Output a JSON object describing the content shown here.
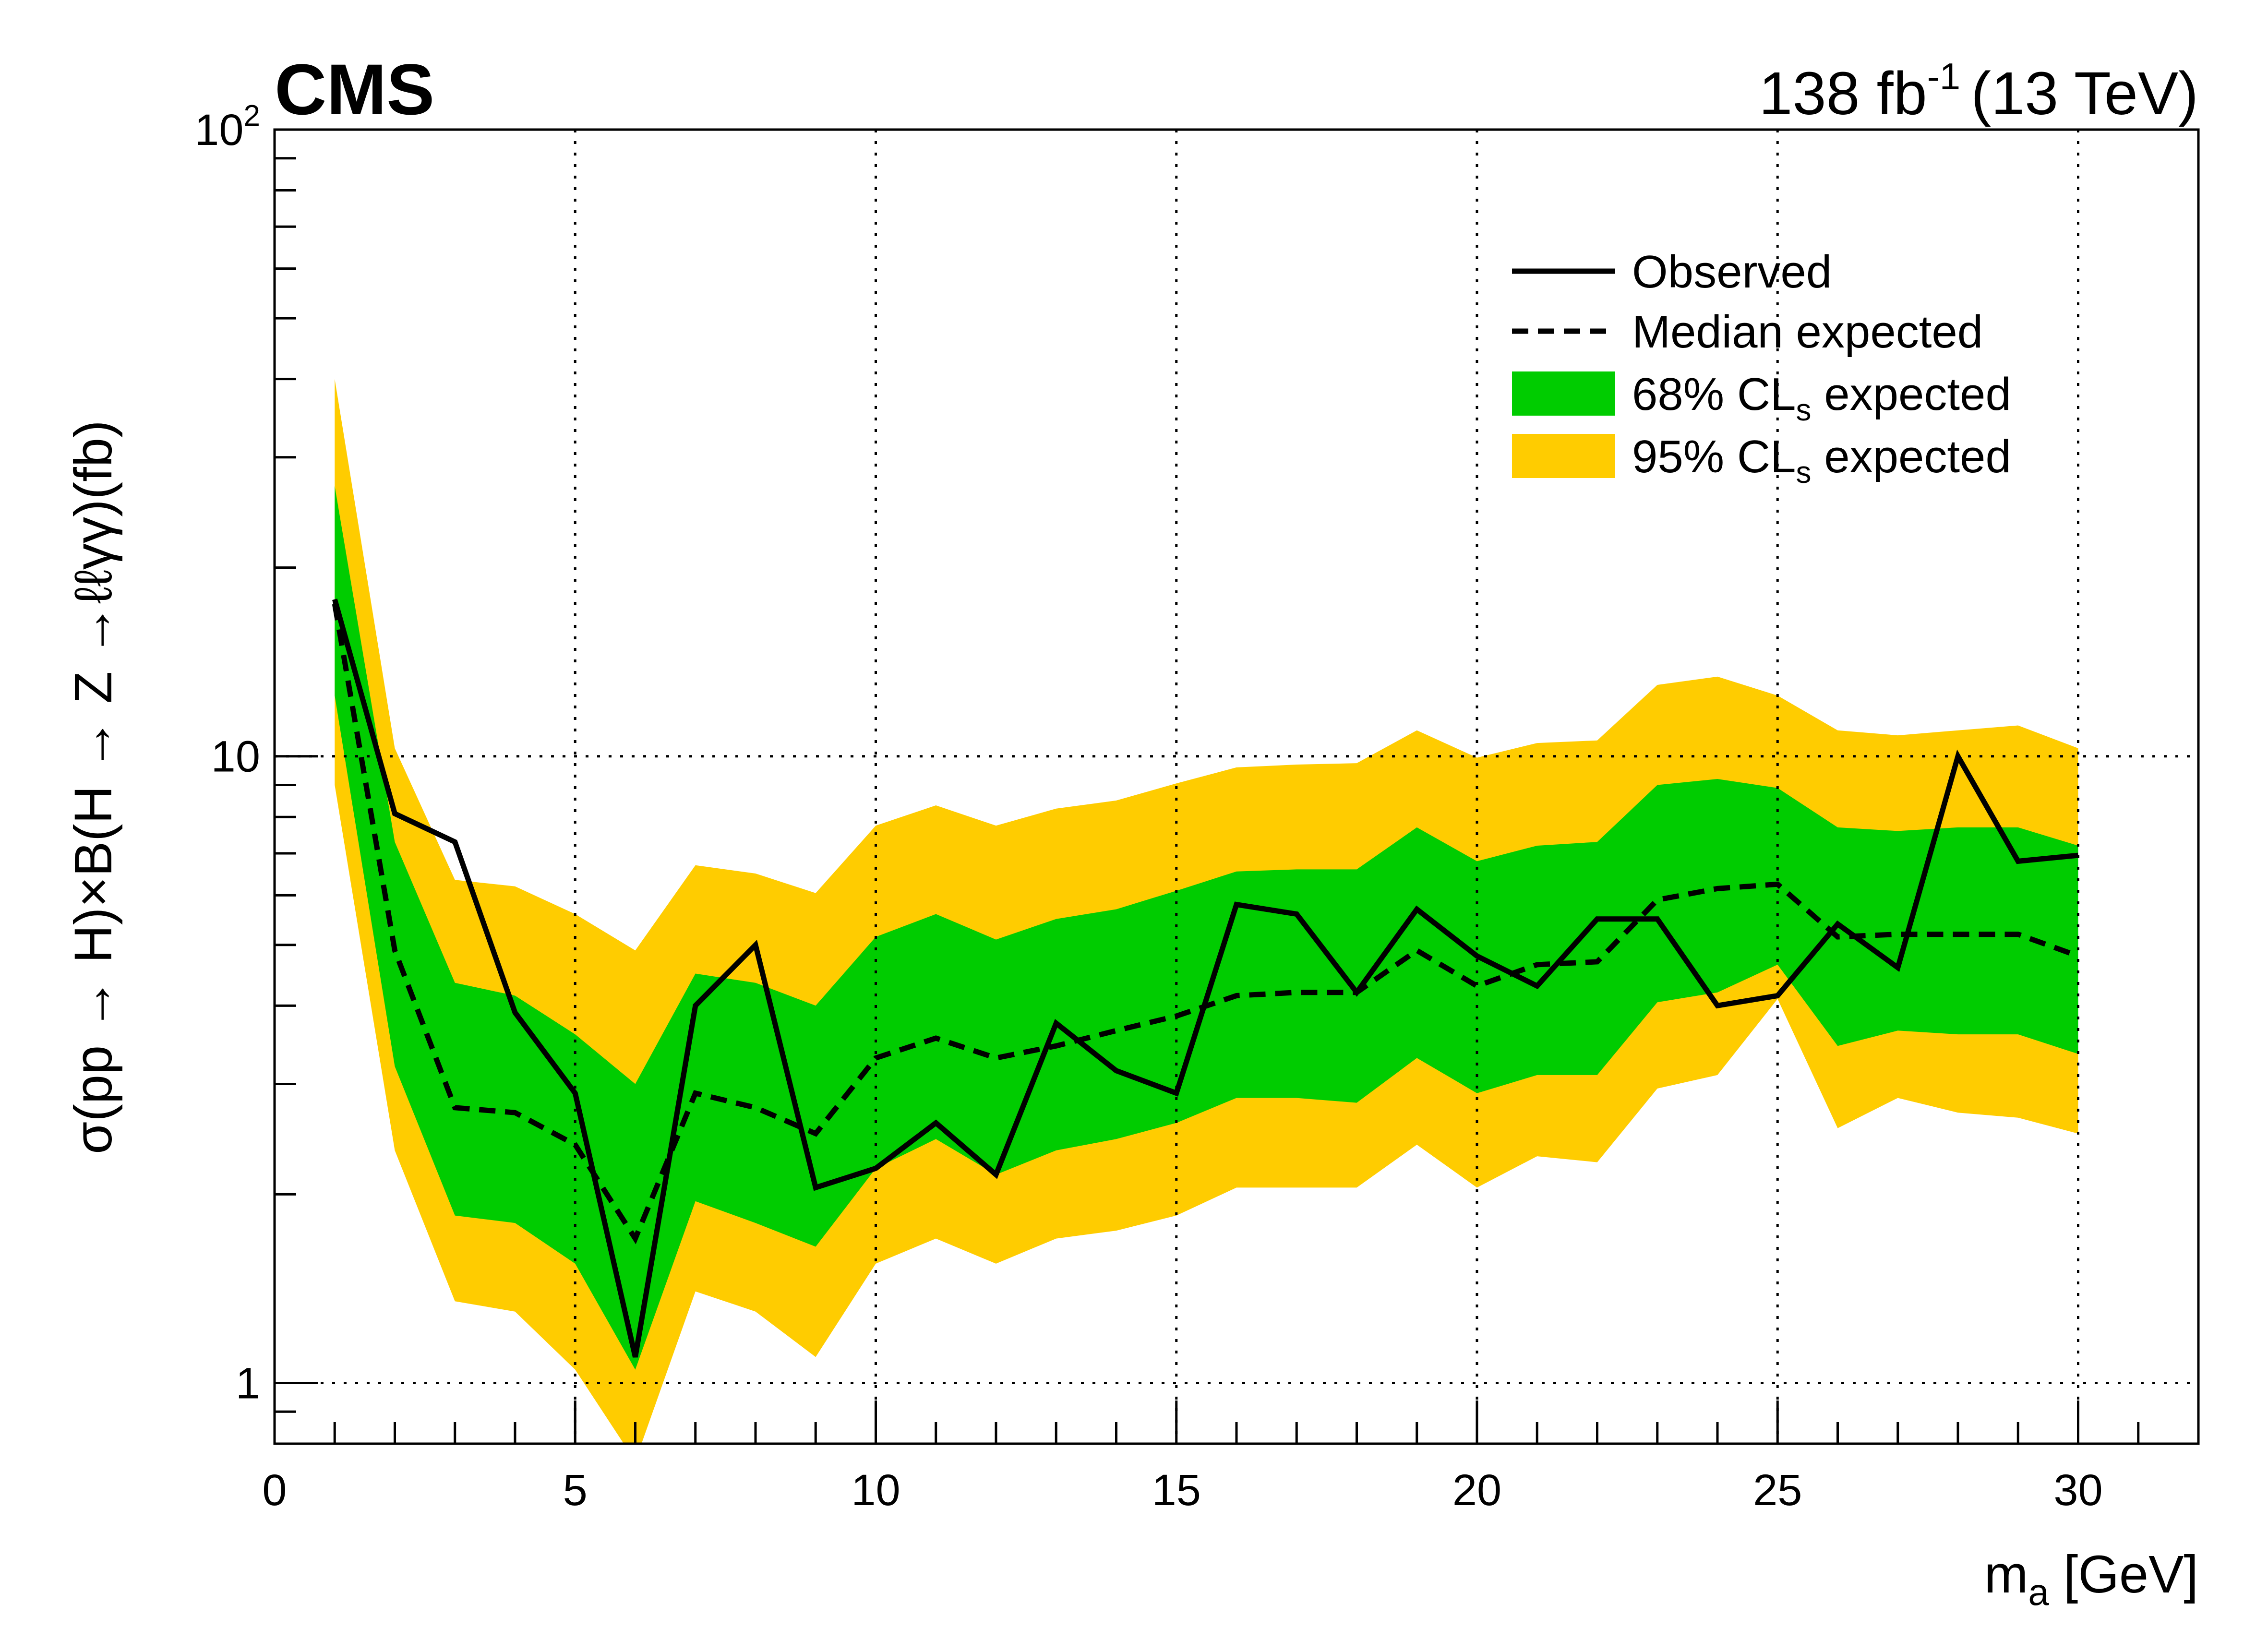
{
  "header": {
    "experiment": "CMS",
    "lumi": "138",
    "lumi_unit": "fb",
    "lumi_exp": "-1",
    "energy": "(13 TeV)"
  },
  "chart_data": {
    "type": "line",
    "xlabel": "m",
    "xlabel_sub": "a",
    "xlabel_unit": "[GeV]",
    "ylabel": "σ(pp → H)×B(H → Z   →ℓℓγγ)(fb)",
    "xlim": [
      0,
      32
    ],
    "ylim": [
      0.8,
      100
    ],
    "yscale": "log",
    "grid": true,
    "legend_position": "top-right",
    "x_ticks": [
      "0",
      "5",
      "10",
      "15",
      "20",
      "25",
      "30"
    ],
    "y_ticks": [
      {
        "base": "10",
        "exp": "2",
        "value": 100
      },
      {
        "base": "10",
        "exp": "",
        "value": 10
      },
      {
        "base": "1",
        "exp": "",
        "value": 1
      }
    ],
    "colors": {
      "band68": "#00cc00",
      "band95": "#ffcc00",
      "observed": "#000000",
      "expected": "#000000"
    },
    "legend": [
      {
        "label": "Observed",
        "sub": "",
        "suffix": "",
        "style": "solid"
      },
      {
        "label": "Median expected",
        "sub": "",
        "suffix": "",
        "style": "dashed"
      },
      {
        "label": "68% CL",
        "sub": "s",
        "suffix": " expected",
        "style": "band68"
      },
      {
        "label": "95% CL",
        "sub": "s",
        "suffix": " expected",
        "style": "band95"
      }
    ],
    "x": [
      1,
      2,
      3,
      4,
      5,
      6,
      7,
      8,
      9,
      10,
      11,
      12,
      13,
      14,
      15,
      16,
      17,
      18,
      19,
      20,
      21,
      22,
      23,
      24,
      25,
      26,
      27,
      28,
      29,
      30
    ],
    "observed": [
      17.8,
      8.1,
      7.3,
      3.9,
      2.9,
      1.1,
      4.0,
      5.0,
      2.05,
      2.2,
      2.6,
      2.15,
      3.75,
      3.15,
      2.9,
      5.8,
      5.6,
      4.2,
      5.7,
      4.8,
      4.3,
      5.5,
      5.5,
      4.0,
      4.15,
      5.4,
      4.6,
      10.0,
      6.8,
      6.95
    ],
    "expected": [
      17.5,
      4.9,
      2.75,
      2.7,
      2.4,
      1.7,
      2.9,
      2.75,
      2.5,
      3.3,
      3.55,
      3.3,
      3.45,
      3.65,
      3.85,
      4.15,
      4.2,
      4.2,
      4.9,
      4.3,
      4.65,
      4.7,
      5.9,
      6.15,
      6.25,
      5.15,
      5.2,
      5.2,
      5.2,
      4.8
    ],
    "band68_low": [
      12.5,
      3.2,
      1.85,
      1.8,
      1.55,
      1.05,
      1.95,
      1.8,
      1.65,
      2.2,
      2.45,
      2.15,
      2.35,
      2.45,
      2.6,
      2.85,
      2.85,
      2.8,
      3.3,
      2.9,
      3.1,
      3.1,
      4.05,
      4.2,
      4.65,
      3.45,
      3.65,
      3.6,
      3.6,
      3.35
    ],
    "band68_high": [
      27.0,
      7.3,
      4.35,
      4.15,
      3.6,
      3.0,
      4.5,
      4.35,
      4.0,
      5.15,
      5.6,
      5.1,
      5.5,
      5.7,
      6.1,
      6.55,
      6.6,
      6.6,
      7.7,
      6.8,
      7.2,
      7.3,
      9.0,
      9.2,
      8.9,
      7.7,
      7.6,
      7.7,
      7.7,
      7.2
    ],
    "band95_low": [
      9.0,
      2.35,
      1.35,
      1.3,
      1.05,
      0.75,
      1.4,
      1.3,
      1.1,
      1.55,
      1.7,
      1.55,
      1.7,
      1.75,
      1.85,
      2.05,
      2.05,
      2.05,
      2.4,
      2.05,
      2.3,
      2.25,
      2.95,
      3.1,
      4.1,
      2.55,
      2.85,
      2.7,
      2.65,
      2.5
    ],
    "band95_high": [
      40.0,
      10.3,
      6.35,
      6.2,
      5.6,
      4.9,
      6.7,
      6.5,
      6.05,
      7.75,
      8.35,
      7.75,
      8.25,
      8.5,
      9.05,
      9.6,
      9.7,
      9.75,
      11.0,
      9.95,
      10.5,
      10.6,
      13.0,
      13.4,
      12.5,
      11.0,
      10.8,
      11.0,
      11.2,
      10.3
    ]
  }
}
